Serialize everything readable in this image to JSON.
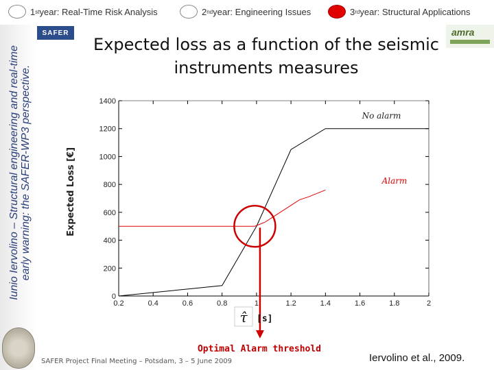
{
  "header": {
    "years": [
      {
        "num": "1",
        "sup": "st",
        "label": " year: Real-Time Risk Analysis",
        "active": false
      },
      {
        "num": "2",
        "sup": "nd",
        "label": " year: Engineering Issues",
        "active": false
      },
      {
        "num": "3",
        "sup": "rd",
        "label": " year: Structural Applications",
        "active": true
      }
    ]
  },
  "sidebar": {
    "line1": "Iunio Iervolino – Structural engineering and real-time",
    "line2": "early warning: the SAFER-WP3 perspective."
  },
  "logos": {
    "safer": "SAFER",
    "amra": "amra"
  },
  "title_line1": "Expected loss as a function of the seismic",
  "title_line2": "instruments measures",
  "footer": "SAFER Project Final Meeting – Potsdam, 3 – 5 June 2009",
  "citation": "Iervolino et al., 2009.",
  "colors": {
    "accent": "#e00000",
    "alarm_line": "#e00000",
    "no_alarm_line": "#000000",
    "annotation": "#cc0000",
    "threshold_text": "#c00000"
  },
  "chart_data": {
    "type": "line",
    "title": "",
    "xlabel": "[s]",
    "xlabel_symbol": "τ̂",
    "ylabel": "Expected Loss [€]",
    "xlim": [
      0.2,
      2.0
    ],
    "ylim": [
      0,
      1400
    ],
    "xticks": [
      0.2,
      0.4,
      0.6,
      0.8,
      1,
      1.2,
      1.4,
      1.6,
      1.8,
      2
    ],
    "yticks": [
      0,
      200,
      400,
      600,
      800,
      1000,
      1200,
      1400
    ],
    "grid": false,
    "series": [
      {
        "name": "No alarm",
        "color": "#000000",
        "x": [
          0.2,
          0.6,
          0.8,
          1.0,
          1.2,
          1.4,
          2.0
        ],
        "y": [
          0,
          50,
          75,
          500,
          1050,
          1200,
          1200
        ]
      },
      {
        "name": "Alarm",
        "color": "#e00000",
        "x": [
          0.2,
          0.99,
          1.05,
          1.1,
          1.15,
          1.2,
          1.25,
          1.3,
          1.4
        ],
        "y": [
          500,
          500,
          530,
          570,
          610,
          650,
          690,
          710,
          760
        ]
      }
    ],
    "annotations": {
      "optimal_threshold_label": "Optimal Alarm threshold",
      "optimal_threshold_x": 1.02,
      "circle_center": {
        "x": 0.99,
        "y": 500
      }
    }
  }
}
